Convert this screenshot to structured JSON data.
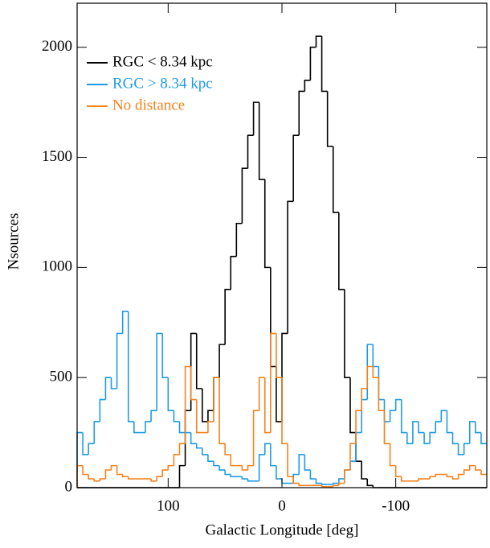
{
  "chart_data": {
    "type": "histogram",
    "x_label": "Galactic Longitude [deg]",
    "y_label": "Nsources",
    "bins": [
      180,
      175,
      170,
      165,
      160,
      155,
      150,
      145,
      140,
      135,
      130,
      125,
      120,
      115,
      110,
      105,
      100,
      95,
      90,
      85,
      80,
      75,
      70,
      65,
      60,
      55,
      50,
      45,
      40,
      35,
      30,
      25,
      20,
      15,
      10,
      5,
      0,
      -5,
      -10,
      -15,
      -20,
      -25,
      -30,
      -35,
      -40,
      -45,
      -50,
      -55,
      -60,
      -65,
      -70,
      -75,
      -80,
      -85,
      -90,
      -95,
      -100,
      -105,
      -110,
      -115,
      -120,
      -125,
      -130,
      -135,
      -140,
      -145,
      -150,
      -155,
      -160,
      -165,
      -170,
      -175,
      -180
    ],
    "series": [
      {
        "name": "RGC < 8.34 kpc",
        "color": "#000000",
        "values": [
          0,
          0,
          0,
          0,
          0,
          0,
          0,
          0,
          0,
          0,
          0,
          0,
          0,
          0,
          0,
          0,
          0,
          0,
          100,
          350,
          700,
          450,
          300,
          350,
          500,
          650,
          900,
          1050,
          1200,
          1450,
          1600,
          1750,
          1400,
          1000,
          550,
          300,
          700,
          1300,
          1600,
          1800,
          1850,
          2000,
          2050,
          1800,
          1550,
          1250,
          900,
          500,
          250,
          120,
          40,
          10,
          0,
          0,
          0,
          0,
          0,
          0,
          0,
          0,
          0,
          0,
          0,
          0,
          0,
          0,
          0,
          0,
          0,
          0,
          0,
          0
        ]
      },
      {
        "name": "RGC > 8.34 kpc",
        "color": "#1e9be6",
        "values": [
          250,
          150,
          200,
          300,
          400,
          500,
          450,
          700,
          800,
          300,
          250,
          250,
          300,
          350,
          700,
          500,
          350,
          300,
          250,
          250,
          200,
          180,
          150,
          120,
          100,
          80,
          60,
          50,
          50,
          40,
          30,
          30,
          150,
          200,
          100,
          40,
          20,
          20,
          60,
          150,
          80,
          40,
          20,
          15,
          15,
          20,
          40,
          80,
          120,
          250,
          400,
          650,
          550,
          400,
          300,
          350,
          400,
          250,
          200,
          300,
          250,
          200,
          250,
          300,
          350,
          250,
          200,
          150,
          200,
          300,
          250,
          200
        ]
      },
      {
        "name": "No distance",
        "color": "#f5821e",
        "values": [
          100,
          60,
          40,
          30,
          40,
          80,
          100,
          60,
          50,
          40,
          40,
          40,
          40,
          30,
          50,
          80,
          100,
          150,
          200,
          550,
          400,
          250,
          250,
          300,
          500,
          200,
          150,
          100,
          100,
          80,
          100,
          350,
          500,
          250,
          700,
          500,
          200,
          50,
          20,
          10,
          10,
          10,
          10,
          5,
          5,
          10,
          20,
          80,
          200,
          350,
          450,
          550,
          500,
          350,
          200,
          100,
          50,
          30,
          30,
          30,
          40,
          40,
          50,
          60,
          60,
          50,
          40,
          60,
          80,
          100,
          80,
          60
        ]
      }
    ],
    "xlim": [
      180,
      -180
    ],
    "xticks": [
      100,
      0,
      -100
    ],
    "ylim": [
      0,
      2200
    ],
    "yticks": [
      0,
      500,
      1000,
      1500,
      2000
    ],
    "legend": "upper left"
  }
}
